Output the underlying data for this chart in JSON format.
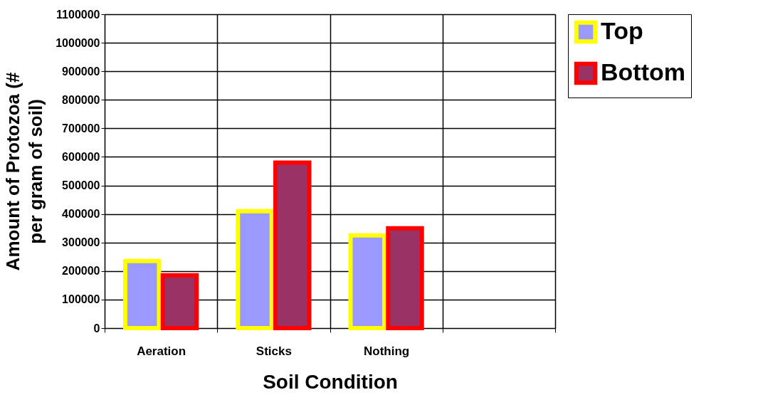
{
  "chart_data": {
    "type": "bar",
    "xlabel": "Soil Condition",
    "ylabel": "Amount of Protozoa (# per gram of soil)",
    "categories": [
      "Aeration",
      "Sticks",
      "Nothing",
      null
    ],
    "series": [
      {
        "name": "Top",
        "color": "#9999ff",
        "values": [
          235000,
          410000,
          325000,
          null
        ]
      },
      {
        "name": "Bottom",
        "color": "#993366",
        "values": [
          185000,
          580000,
          350000,
          null
        ]
      }
    ],
    "ylim": [
      0,
      1100000
    ],
    "yticks": [
      0,
      100000,
      200000,
      300000,
      400000,
      500000,
      600000,
      700000,
      800000,
      900000,
      1000000,
      1100000
    ],
    "grid": true,
    "legend": "right"
  }
}
